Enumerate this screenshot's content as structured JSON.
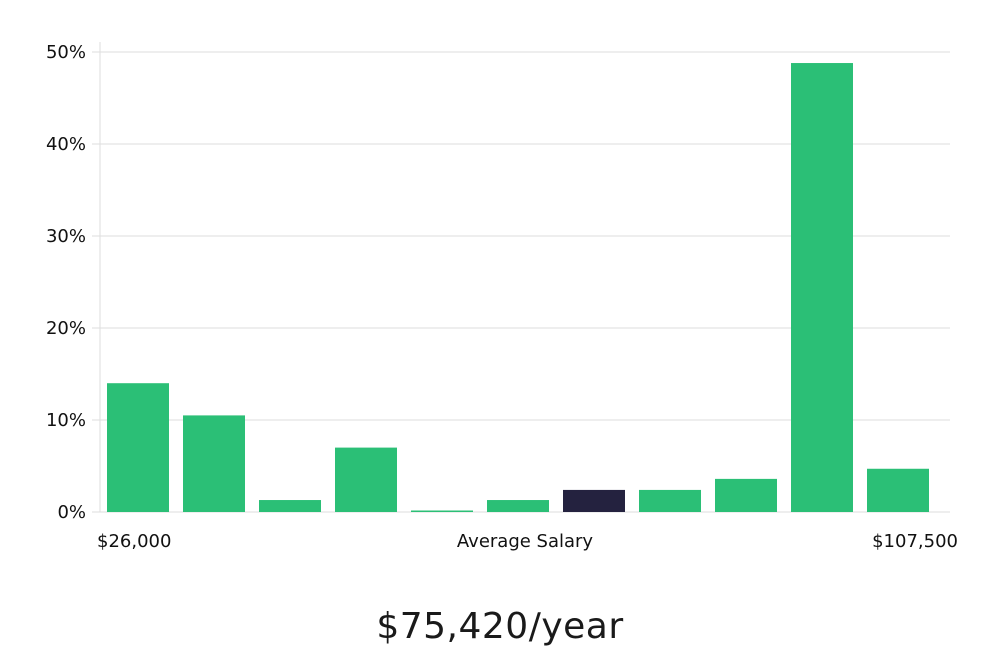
{
  "chart_data": {
    "type": "bar",
    "title": "",
    "xlabel": "Average Salary",
    "x_min_label": "$26,000",
    "x_max_label": "$107,500",
    "ylabel": "",
    "ylim": [
      0,
      50
    ],
    "y_ticks": [
      {
        "value": 0,
        "label": "0%"
      },
      {
        "value": 10,
        "label": "10%"
      },
      {
        "value": 20,
        "label": "20%"
      },
      {
        "value": 30,
        "label": "30%"
      },
      {
        "value": 40,
        "label": "40%"
      },
      {
        "value": 50,
        "label": "50%"
      }
    ],
    "grid": true,
    "values": [
      14.0,
      10.5,
      1.3,
      7.0,
      0.1,
      1.3,
      2.4,
      2.4,
      3.6,
      48.8,
      4.7
    ],
    "highlight_index": 6,
    "colors": {
      "bar": "#2bbf76",
      "highlight": "#24223f",
      "grid": "#dddddd",
      "axis": "#dddddd"
    }
  },
  "salary": {
    "value": "$75,420/year"
  }
}
